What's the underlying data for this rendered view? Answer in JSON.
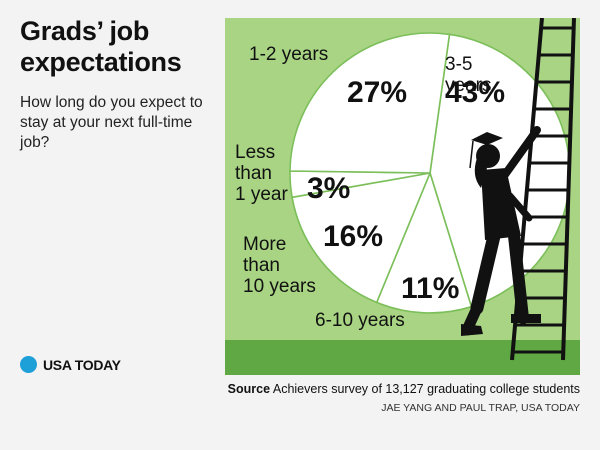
{
  "title": "Grads’ job expectations",
  "subtitle": "How long do you expect to stay at your next full-time job?",
  "brand": {
    "name": "USA TODAY",
    "color": "#1d9fd8"
  },
  "source": {
    "label": "Source",
    "text": "Achievers survey of 13,127 graduating college students"
  },
  "credit": "JAE YANG AND PAUL TRAP, USA TODAY",
  "colors": {
    "panel": "#a8d483",
    "ground": "#5fa843",
    "slice": "#ffffff",
    "divider": "#7cbf5a",
    "ladder": "#111111"
  },
  "chart_data": {
    "type": "pie",
    "slices": [
      {
        "label": "3-5 years",
        "value": 43
      },
      {
        "label": "6-10 years",
        "value": 11
      },
      {
        "label": "More than 10 years",
        "value": 16
      },
      {
        "label": "Less than 1 year",
        "value": 3
      },
      {
        "label": "1-2 years",
        "value": 27
      }
    ],
    "value_labels": [
      "43%",
      "11%",
      "16%",
      "3%",
      "27%"
    ]
  }
}
